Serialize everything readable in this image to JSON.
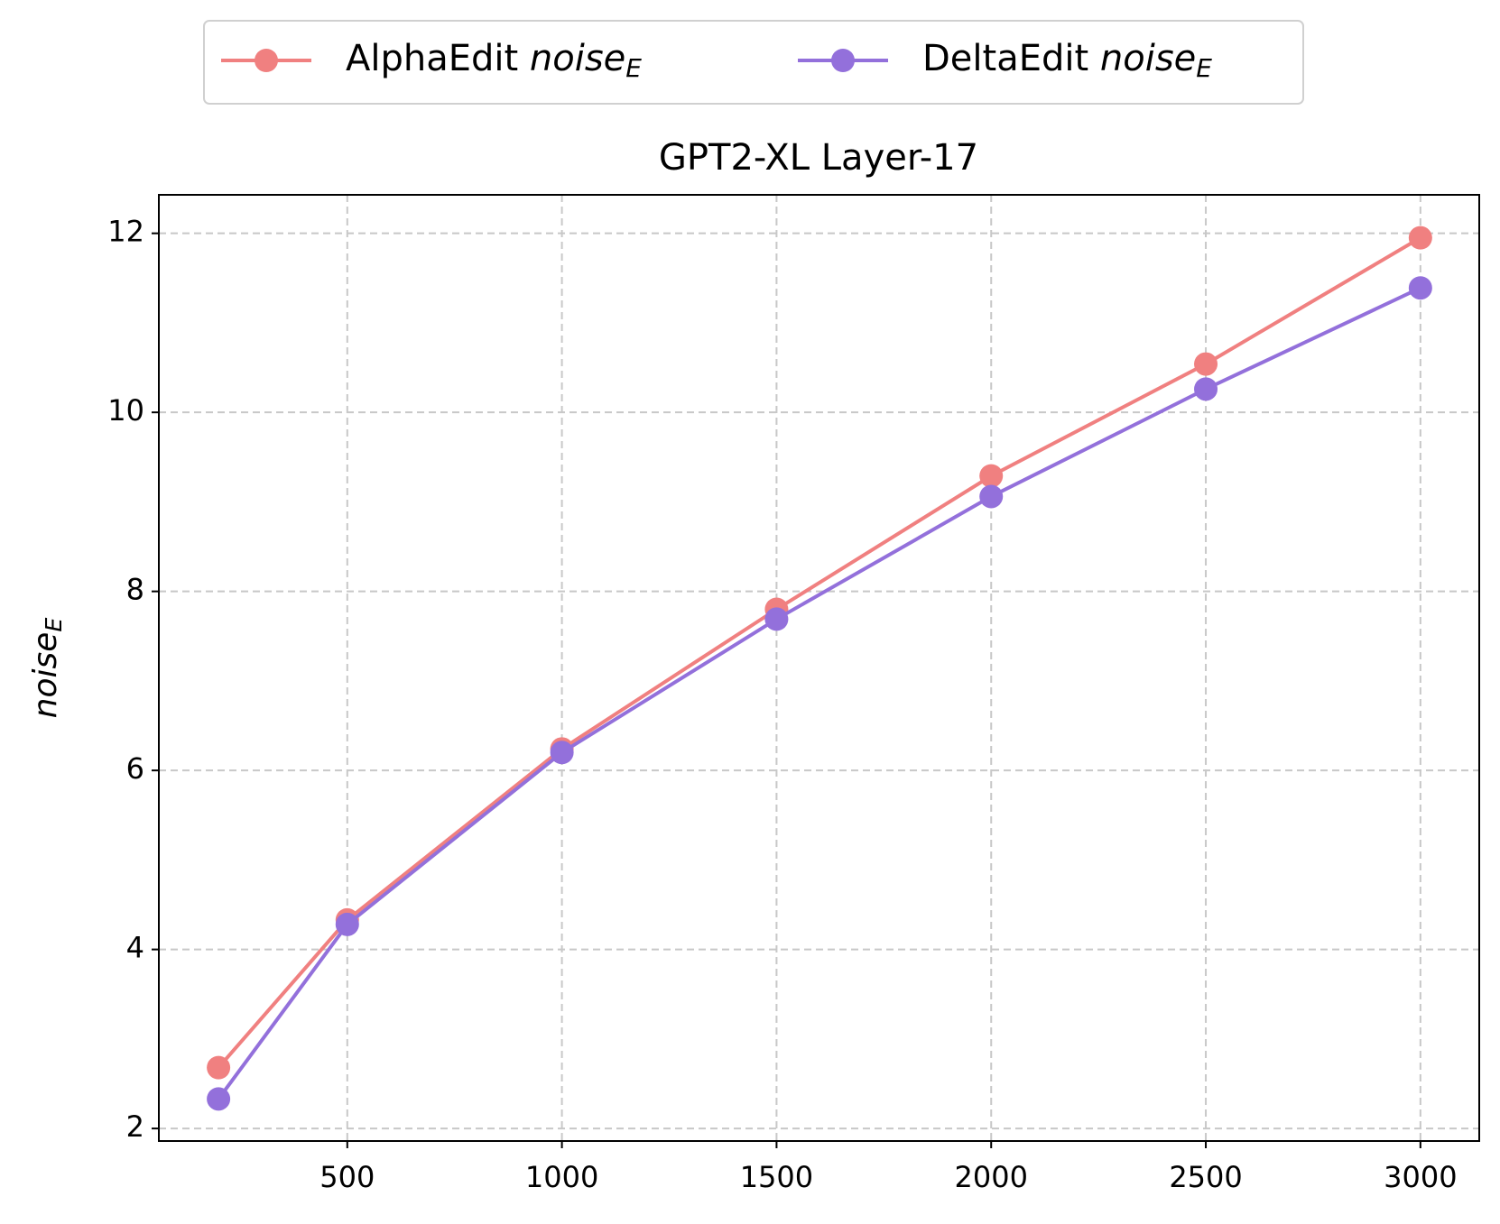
{
  "chart_data": {
    "type": "line",
    "title": "GPT2-XL Layer-17",
    "y_label": "noiseE",
    "x": [
      200,
      500,
      1000,
      1500,
      2000,
      2500,
      3000
    ],
    "series": [
      {
        "name": "AlphaEdit noiseE",
        "color": "#f08080",
        "values": [
          2.68,
          4.33,
          6.24,
          7.8,
          9.29,
          10.54,
          11.95
        ]
      },
      {
        "name": "DeltaEdit noiseE",
        "color": "#9370db",
        "values": [
          2.33,
          4.28,
          6.2,
          7.69,
          9.06,
          10.26,
          11.39
        ]
      }
    ],
    "xlim": [
      61,
      3137
    ],
    "xticks": [
      500,
      1000,
      1500,
      2000,
      2500,
      3000
    ],
    "ylim": [
      1.86,
      12.43
    ],
    "yticks": [
      2,
      4,
      6,
      8,
      10,
      12
    ],
    "grid": true,
    "legend": "top"
  }
}
